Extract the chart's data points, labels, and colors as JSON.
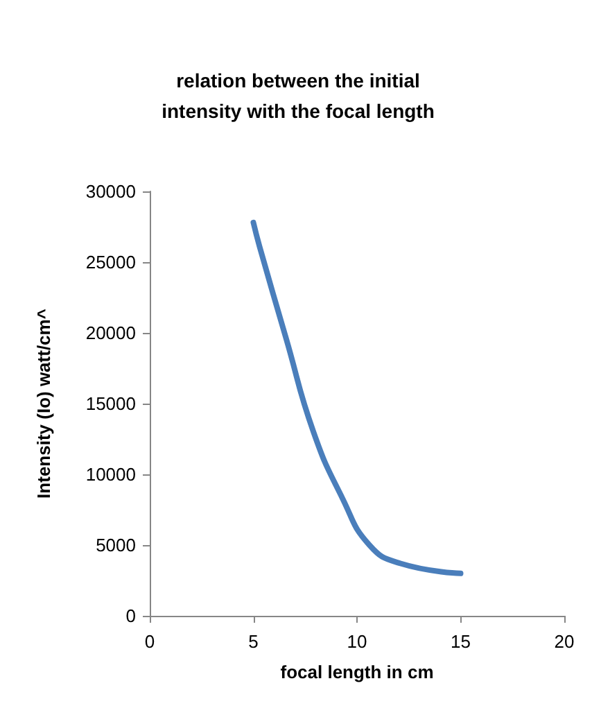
{
  "chart_data": {
    "type": "line",
    "title": "relation between the initial\nintensity with the focal length",
    "xlabel": "focal length in cm",
    "ylabel": "Intensity (Io) watt/cm^",
    "x": [
      5,
      5.3,
      6.6,
      7.9,
      9.3,
      10.6,
      12.1,
      15
    ],
    "series": [
      {
        "color": "#4a7ebb",
        "values": [
          27800,
          26100,
          19500,
          13000,
          8300,
          5000,
          3700,
          3000
        ]
      }
    ],
    "xlim": [
      0,
      20
    ],
    "xticks": [
      0,
      5,
      10,
      15,
      20
    ],
    "ylim": [
      0,
      30000
    ],
    "yticks": [
      0,
      5000,
      10000,
      15000,
      20000,
      25000,
      30000
    ],
    "grid": false,
    "marker": "none",
    "line_style": "solid"
  }
}
